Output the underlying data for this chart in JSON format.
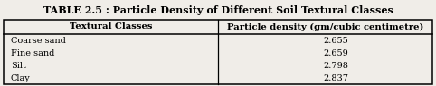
{
  "title": "TABLE 2.5 : Particle Density of Different Soil Textural Classes",
  "col1_header": "Textural Classes",
  "col2_header": "Particle density (gm/cubic centimetre)",
  "rows": [
    [
      "Coarse sand",
      "2.655"
    ],
    [
      "Fine sand",
      "2.659"
    ],
    [
      "Silt",
      "2.798"
    ],
    [
      "Clay",
      "2.837"
    ]
  ],
  "bg_color": "#f0ede8",
  "title_fontsize": 8.0,
  "header_fontsize": 7.2,
  "data_fontsize": 7.0
}
